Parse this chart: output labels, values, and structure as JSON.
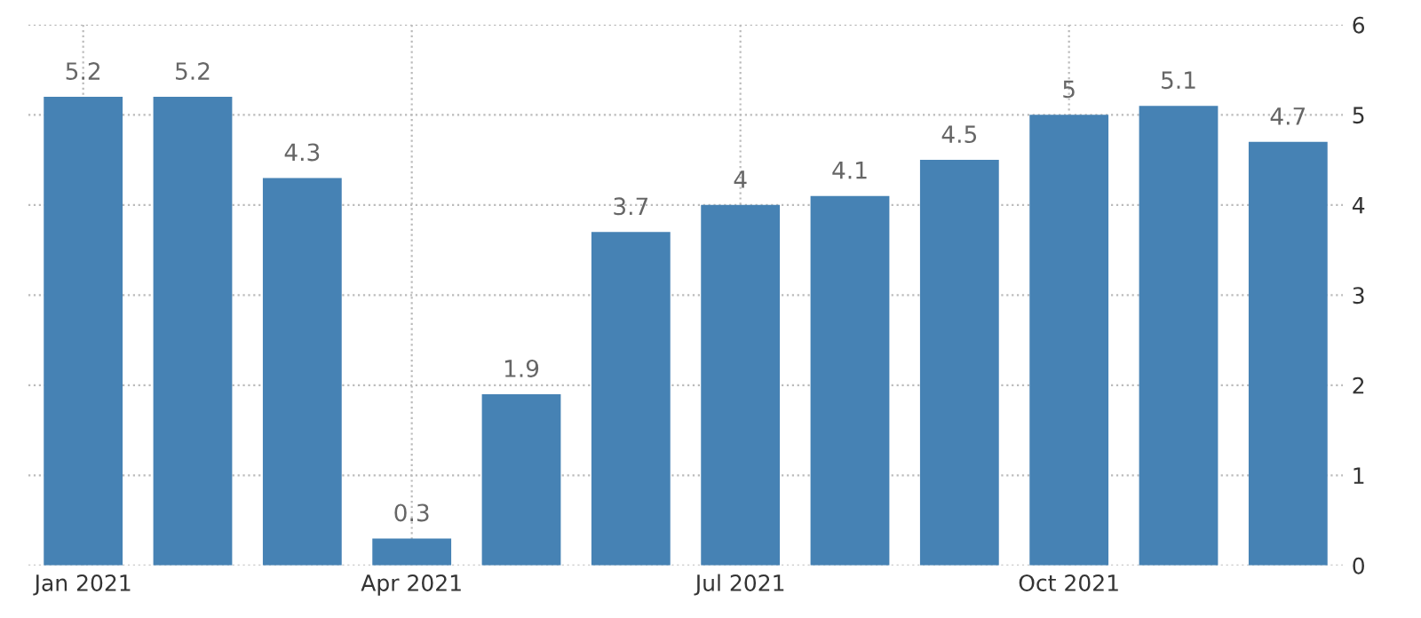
{
  "chart_data": {
    "type": "bar",
    "categories": [
      "Jan 2021",
      null,
      null,
      "Apr 2021",
      null,
      null,
      "Jul 2021",
      null,
      null,
      "Oct 2021",
      null,
      null
    ],
    "values": [
      5.2,
      5.2,
      4.3,
      0.3,
      1.9,
      3.7,
      4,
      4.1,
      4.5,
      5,
      5.1,
      4.7
    ],
    "color": "#4682b4",
    "ylim": [
      0,
      6
    ],
    "yticks": [
      0,
      1,
      2,
      3,
      4,
      5,
      6
    ],
    "grid": true,
    "data_labels": true
  }
}
